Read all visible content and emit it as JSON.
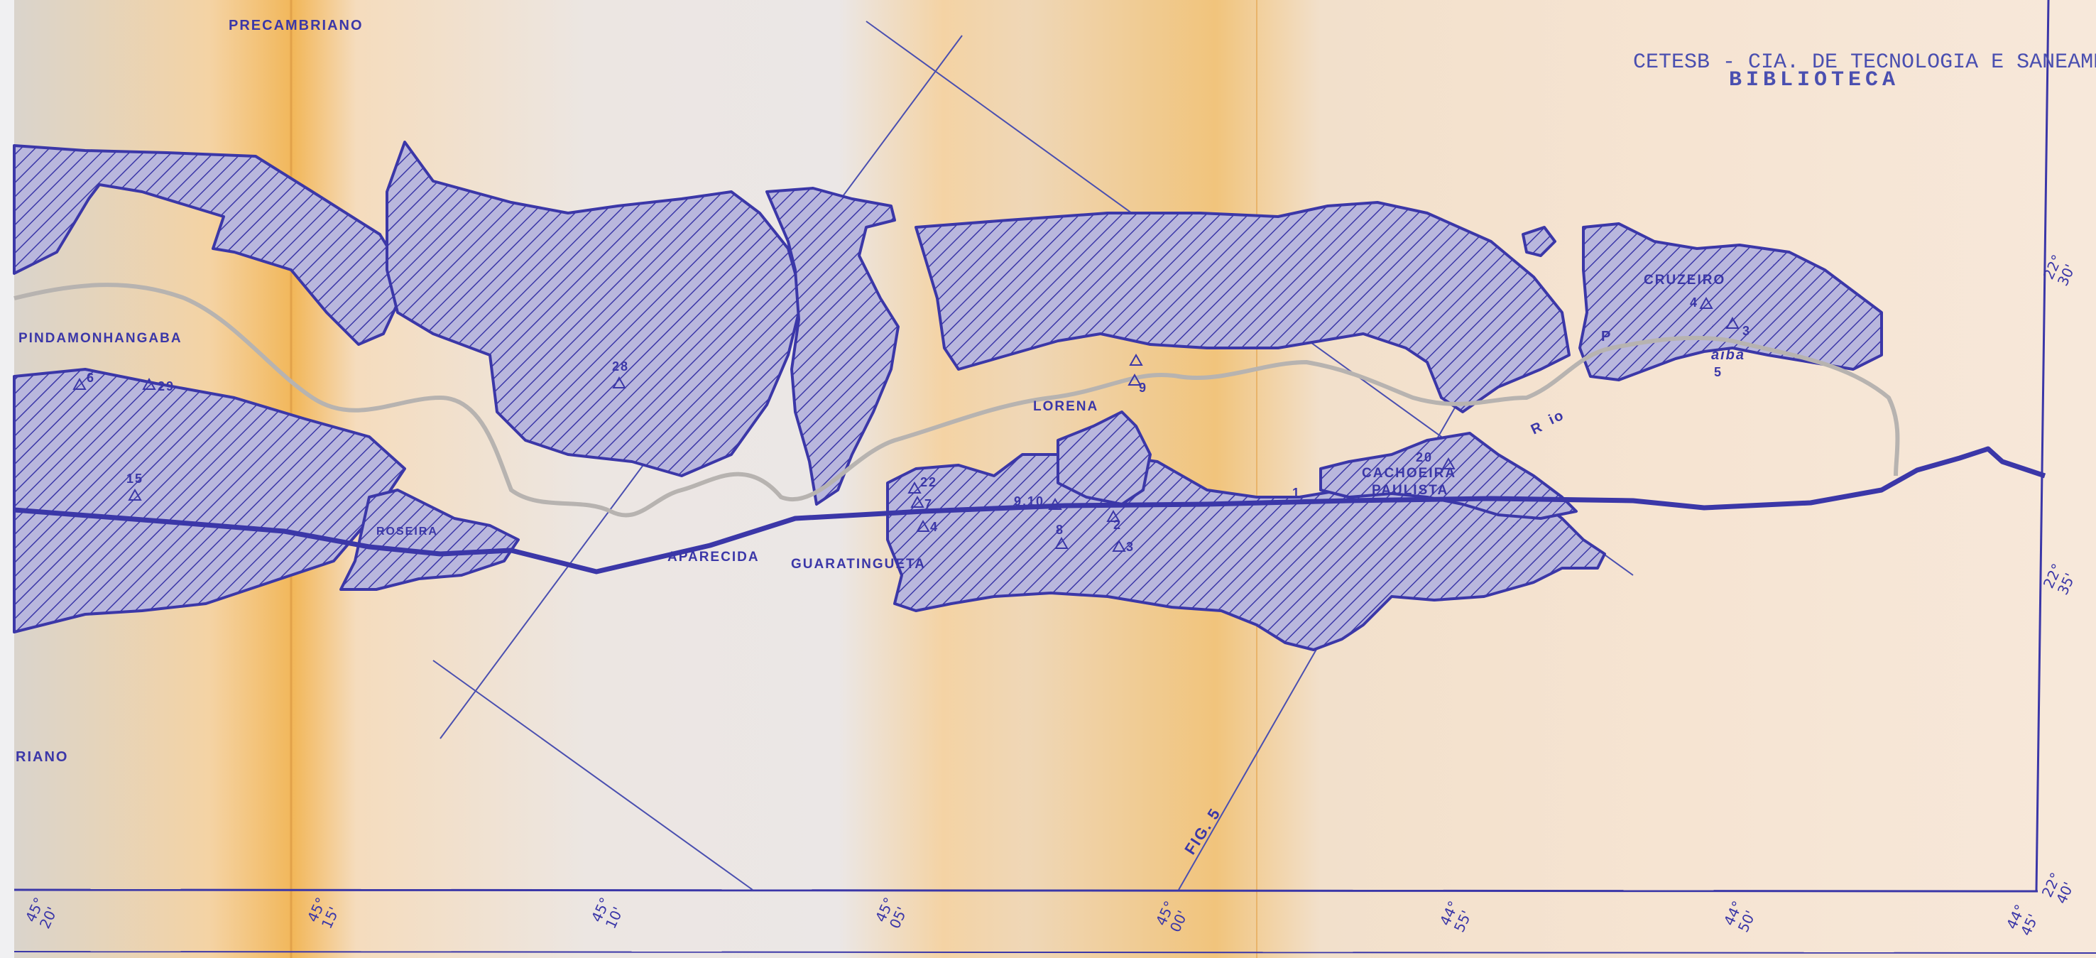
{
  "stamp": {
    "line1": "CETESB - CIA. DE TECNOLOGIA E SANEAMENTO AMBIENTAL",
    "line2": "BIBLIOTECA"
  },
  "geology": {
    "precambriano_top": "PRECAMBRIANO",
    "precambriano_left": "RIANO"
  },
  "towns": {
    "pindamonhangaba": "PINDAMONHANGABA",
    "roseira": "ROSEIRA",
    "aparecida": "APARECIDA",
    "guaratingueta": "GUARATINGUETA",
    "lorena": "LORENA",
    "cachoeira_1": "CACHOEIRA",
    "cachoeira_2": "PAULISTA",
    "cruzeiro": "CRUZEIRO"
  },
  "river": {
    "r": "R",
    "io": "io",
    "p": "P",
    "aiba": "aiba"
  },
  "figure_label": "FIG. 5",
  "points": [
    "6",
    "29",
    "15",
    "28",
    "22",
    "7",
    "4",
    "9,10",
    "8",
    "2",
    "3",
    "9",
    "1",
    "20",
    "4",
    "3",
    "5"
  ],
  "lon_ticks": [
    {
      "deg": "45°",
      "min": "20'"
    },
    {
      "deg": "45°",
      "min": "15'"
    },
    {
      "deg": "45°",
      "min": "10'"
    },
    {
      "deg": "45°",
      "min": "05'"
    },
    {
      "deg": "45°",
      "min": "00'"
    },
    {
      "deg": "44°",
      "min": "55'"
    },
    {
      "deg": "44°",
      "min": "50'"
    },
    {
      "deg": "44°",
      "min": "45'"
    }
  ],
  "lat_ticks": [
    {
      "deg": "22°",
      "min": "30'"
    },
    {
      "deg": "22°",
      "min": "35'"
    },
    {
      "deg": "22°",
      "min": "40'"
    }
  ],
  "colors": {
    "hatch": "#3b37a8",
    "paper": "#f3e6d6",
    "band": "#f0b84a",
    "river": "#b7b3b0"
  }
}
